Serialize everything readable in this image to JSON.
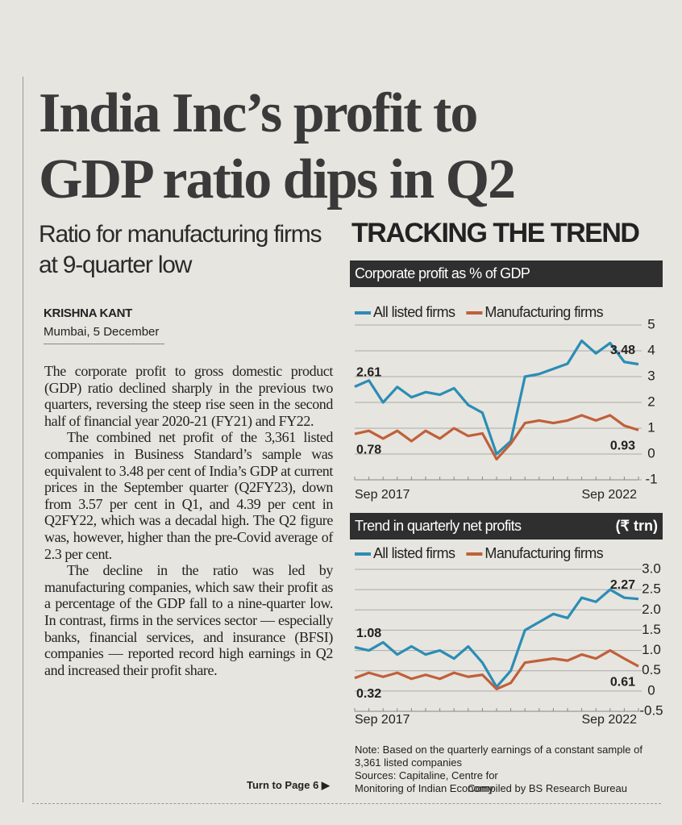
{
  "headline": [
    "India Inc’s profit to",
    "GDP ratio dips in Q2"
  ],
  "subheadline": "Ratio for manufacturing firms at 9-quarter low",
  "byline": "KRISHNA KANT",
  "dateline": "Mumbai, 5 December",
  "body": [
    "The corporate profit to gross domestic product (GDP) ratio declined sharply in the previous two quarters, reversing the steep rise seen in the second half of financial year 2020-21 (FY21) and FY22.",
    "The combined net profit of the 3,361 listed companies in Business Standard’s sample was equivalent to 3.48 per cent of India’s GDP at current prices in the September quarter (Q2FY23), down from 3.57 per cent in Q1, and 4.39 per cent in Q2FY22, which was a decadal high. The Q2 figure was, however, higher than the pre-Covid average of 2.3 per cent.",
    "The decline in the ratio was led by manufacturing companies, which saw their profit as a percentage of the GDP fall to a nine-quarter low. In contrast, firms in the services sector — especially banks, financial services, and insurance (BFSI) companies — reported record high earnings in Q2 and increased their profit share."
  ],
  "turn_to": "Turn to Page 6 ▶",
  "sidebar_title": "TRACKING THE TREND",
  "note": "Note: Based on the quarterly earnings of a constant sample of 3,361 listed companies",
  "sources": "Sources: Capitaline, Centre for Monitoring of Indian Economy",
  "credit": "Compiled by BS Research Bureau",
  "chart_data": [
    {
      "type": "line",
      "title": "Corporate profit as % of GDP",
      "categories": [
        "Sep 2017",
        null,
        null,
        null,
        null,
        null,
        null,
        null,
        null,
        null,
        null,
        null,
        null,
        null,
        null,
        null,
        null,
        null,
        null,
        null,
        "Sep 2022"
      ],
      "series": [
        {
          "name": "All listed firms",
          "color": "#2b8db5",
          "values": [
            2.61,
            2.85,
            2.0,
            2.6,
            2.2,
            2.4,
            2.3,
            2.55,
            1.9,
            1.6,
            0.0,
            0.5,
            3.0,
            3.1,
            3.3,
            3.5,
            4.39,
            3.9,
            4.3,
            3.57,
            3.48
          ]
        },
        {
          "name": "Manufacturing firms",
          "color": "#c0603a",
          "values": [
            0.78,
            0.9,
            0.6,
            0.9,
            0.5,
            0.9,
            0.6,
            1.0,
            0.7,
            0.8,
            -0.2,
            0.4,
            1.2,
            1.3,
            1.2,
            1.3,
            1.5,
            1.3,
            1.5,
            1.1,
            0.93
          ]
        }
      ],
      "ylim": [
        -1,
        5
      ],
      "yticks": [
        5,
        4,
        3,
        2,
        1,
        0,
        -1
      ],
      "grid": true
    },
    {
      "type": "line",
      "title": "Trend in quarterly net profits",
      "unit": "(₹ trn)",
      "categories": [
        "Sep 2017",
        null,
        null,
        null,
        null,
        null,
        null,
        null,
        null,
        null,
        null,
        null,
        null,
        null,
        null,
        null,
        null,
        null,
        null,
        null,
        "Sep 2022"
      ],
      "series": [
        {
          "name": "All listed firms",
          "color": "#2b8db5",
          "values": [
            1.08,
            1.0,
            1.2,
            0.9,
            1.1,
            0.9,
            1.0,
            0.8,
            1.1,
            0.7,
            0.1,
            0.5,
            1.5,
            1.7,
            1.9,
            1.8,
            2.3,
            2.2,
            2.5,
            2.3,
            2.27
          ]
        },
        {
          "name": "Manufacturing firms",
          "color": "#c0603a",
          "values": [
            0.32,
            0.45,
            0.35,
            0.45,
            0.3,
            0.4,
            0.3,
            0.45,
            0.35,
            0.4,
            0.05,
            0.2,
            0.7,
            0.75,
            0.8,
            0.75,
            0.9,
            0.8,
            1.0,
            0.8,
            0.61
          ]
        }
      ],
      "ylim": [
        -0.5,
        3.0
      ],
      "yticks": [
        {
          "value": 3,
          "label": "3.0"
        },
        2.5,
        {
          "value": 2,
          "label": "2.0"
        },
        1.5,
        {
          "value": 1,
          "label": "1.0"
        },
        0.5,
        0,
        -0.5
      ],
      "grid": true
    }
  ]
}
